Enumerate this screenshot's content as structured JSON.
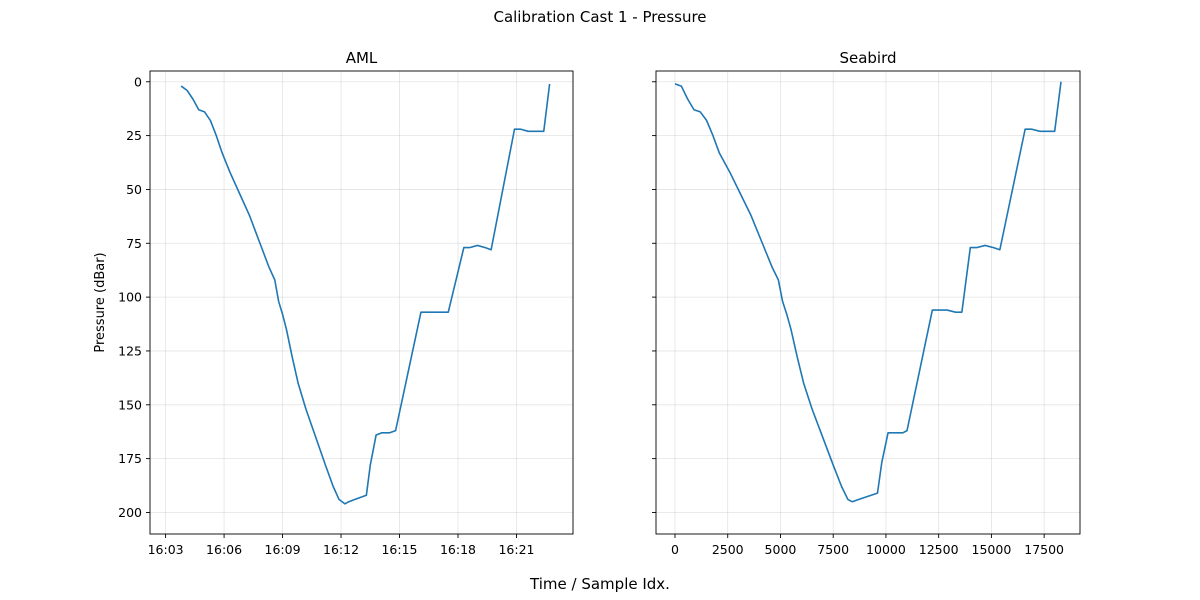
{
  "figure": {
    "title": "Calibration Cast 1 - Pressure",
    "xlabel": "Time / Sample Idx."
  },
  "chart_data": [
    {
      "type": "line",
      "title": "AML",
      "xlabel": "",
      "ylabel": "Pressure (dBar)",
      "y_inverted": true,
      "ylim": [
        210,
        -5
      ],
      "yticks": [
        0,
        25,
        50,
        75,
        100,
        125,
        150,
        175,
        200
      ],
      "x_axis": "time",
      "xlim": [
        "16:02:12",
        "16:23:54"
      ],
      "xticks": [
        "16:03",
        "16:06",
        "16:09",
        "16:12",
        "16:15",
        "16:18",
        "16:21"
      ],
      "grid": true,
      "color": "#1f77b4",
      "series": [
        {
          "x": [
            "16:03:48",
            "16:04:06",
            "16:04:24",
            "16:04:42",
            "16:05:00",
            "16:05:18",
            "16:05:36",
            "16:05:54",
            "16:06:18",
            "16:06:48",
            "16:07:18",
            "16:07:48",
            "16:08:18",
            "16:08:36",
            "16:08:48",
            "16:09:00",
            "16:09:12",
            "16:09:30",
            "16:09:48",
            "16:10:12",
            "16:10:42",
            "16:11:12",
            "16:11:36",
            "16:11:54",
            "16:12:12",
            "16:12:24",
            "16:12:42",
            "16:13:00",
            "16:13:18",
            "16:13:30",
            "16:13:48",
            "16:14:06",
            "16:14:30",
            "16:14:48",
            "16:16:06",
            "16:16:24",
            "16:16:48",
            "16:17:12",
            "16:17:30",
            "16:18:18",
            "16:18:36",
            "16:19:00",
            "16:19:24",
            "16:19:42",
            "16:20:54",
            "16:21:12",
            "16:21:36",
            "16:22:06",
            "16:22:24",
            "16:22:42"
          ],
          "y": [
            2,
            4,
            8,
            13,
            14,
            18,
            25,
            33,
            42,
            52,
            62,
            74,
            86,
            92,
            102,
            108,
            115,
            128,
            140,
            152,
            165,
            178,
            188,
            194,
            196,
            195,
            194,
            193,
            192,
            178,
            164,
            163,
            163,
            162,
            107,
            107,
            107,
            107,
            107,
            77,
            77,
            76,
            77,
            78,
            22,
            22,
            23,
            23,
            23,
            1
          ]
        }
      ]
    },
    {
      "type": "line",
      "title": "Seabird",
      "xlabel": "",
      "ylabel": "",
      "y_inverted": true,
      "ylim": [
        210,
        -5
      ],
      "yticks": [
        0,
        25,
        50,
        75,
        100,
        125,
        150,
        175,
        200
      ],
      "xlim": [
        -900,
        19200
      ],
      "xticks": [
        0,
        2500,
        5000,
        7500,
        10000,
        12500,
        15000,
        17500
      ],
      "grid": true,
      "color": "#1f77b4",
      "series": [
        {
          "x": [
            0,
            300,
            600,
            900,
            1200,
            1500,
            1800,
            2100,
            2600,
            3100,
            3600,
            4100,
            4600,
            4900,
            5100,
            5300,
            5500,
            5800,
            6100,
            6500,
            7000,
            7500,
            7900,
            8200,
            8400,
            8700,
            9000,
            9300,
            9600,
            9800,
            10100,
            10400,
            10800,
            11000,
            12200,
            12500,
            12900,
            13300,
            13600,
            14000,
            14300,
            14700,
            15100,
            15400,
            16600,
            16900,
            17300,
            17700,
            18000,
            18300
          ],
          "y": [
            1,
            2,
            8,
            13,
            14,
            18,
            25,
            33,
            42,
            52,
            62,
            74,
            86,
            92,
            102,
            108,
            115,
            128,
            140,
            152,
            165,
            178,
            188,
            194,
            195,
            194,
            193,
            192,
            191,
            177,
            163,
            163,
            163,
            162,
            106,
            106,
            106,
            107,
            107,
            77,
            77,
            76,
            77,
            78,
            22,
            22,
            23,
            23,
            23,
            0
          ]
        }
      ]
    }
  ]
}
